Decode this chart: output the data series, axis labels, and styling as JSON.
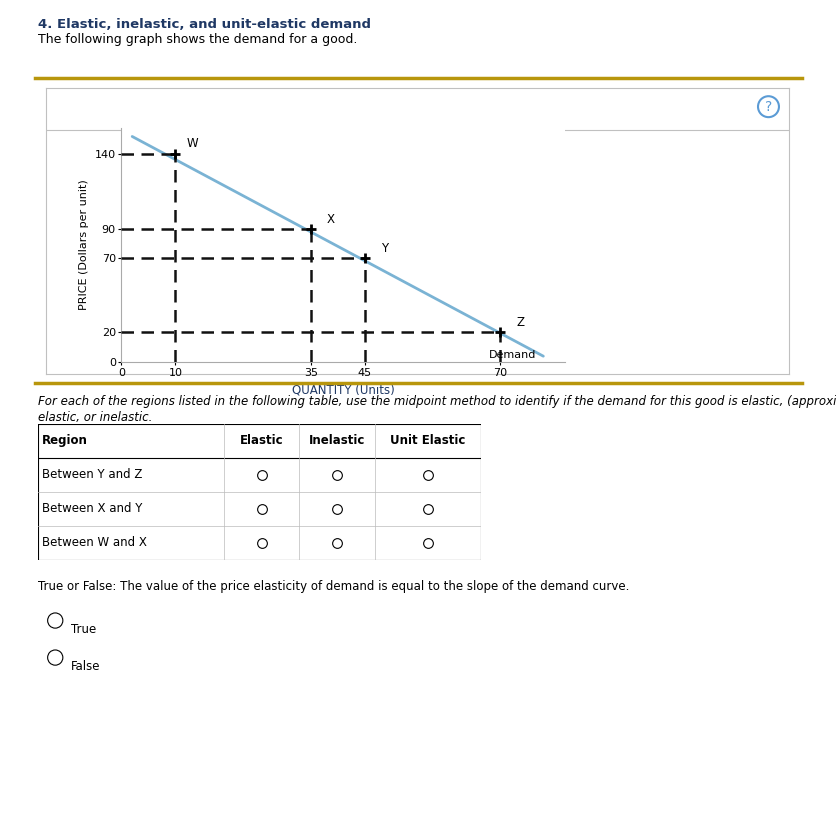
{
  "title": "4. Elastic, inelastic, and unit-elastic demand",
  "subtitle": "The following graph shows the demand for a good.",
  "demand_points": [
    [
      10,
      140
    ],
    [
      35,
      90
    ],
    [
      45,
      70
    ],
    [
      70,
      20
    ]
  ],
  "demand_line_x": [
    2,
    78
  ],
  "demand_line_y": [
    152,
    4
  ],
  "point_labels": [
    "W",
    "X",
    "Y",
    "Z"
  ],
  "x_ticks": [
    0,
    10,
    35,
    45,
    70
  ],
  "y_ticks": [
    0,
    20,
    70,
    90,
    140
  ],
  "xlabel": "QUANTITY (Units)",
  "ylabel": "PRICE (Dollars per unit)",
  "demand_label": "Demand",
  "demand_color": "#7ab3d4",
  "dashed_color": "#111111",
  "xlim": [
    0,
    82
  ],
  "ylim": [
    0,
    158
  ],
  "table_regions": [
    "Between Y and Z",
    "Between X and Y",
    "Between W and X"
  ],
  "table_headers": [
    "Region",
    "Elastic",
    "Inelastic",
    "Unit Elastic"
  ],
  "true_false_text": "True or False: The value of the price elasticity of demand is equal to the slope of the demand curve.",
  "true_label": "True",
  "false_label": "False",
  "title_color": "#1f3864",
  "subtitle_color": "#000000",
  "body_italic_color": "#000000",
  "question_mark_color": "#5b9bd5",
  "border_color_outer": "#b8960c",
  "border_color_inner": "#c0c0c0"
}
